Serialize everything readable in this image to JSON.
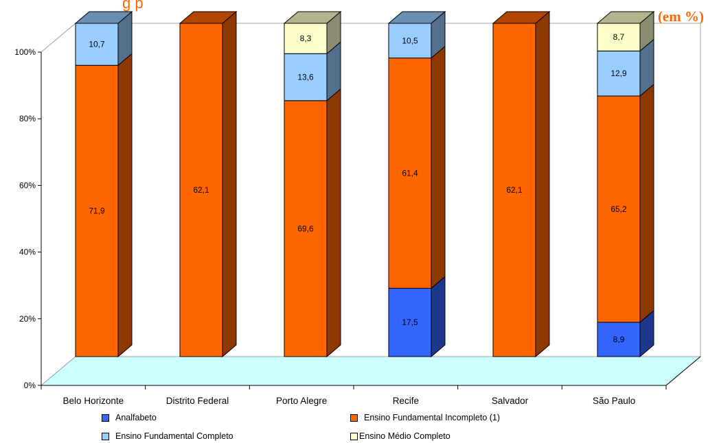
{
  "header": {
    "title_fragment": "g            p",
    "unit": "(em %)"
  },
  "colors": {
    "Analfabeto": "#3366ff",
    "Ensino Fundamental Incompleto (1)": "#ff6600",
    "Ensino Fundamental Completo": "#99ccff",
    "Ensino Médio Completo": "#ffffcc",
    "floor": "#ccffff"
  },
  "chart_data": {
    "type": "bar",
    "stacked": true,
    "three_d": true,
    "categories": [
      "Belo Horizonte",
      "Distrito Federal",
      "Porto Alegre",
      "Recife",
      "Salvador",
      "São Paulo"
    ],
    "series": [
      {
        "name": "Analfabeto",
        "values": [
          null,
          null,
          null,
          17.5,
          null,
          8.9
        ],
        "extent": [
          0,
          0,
          0,
          20.5,
          0,
          10.3
        ]
      },
      {
        "name": "Ensino Fundamental Incompleto (1)",
        "values": [
          71.9,
          62.1,
          69.6,
          61.4,
          62.1,
          65.2
        ],
        "extent": [
          87.4,
          100,
          76.8,
          69.1,
          100,
          67.9
        ]
      },
      {
        "name": "Ensino Fundamental Completo",
        "values": [
          10.7,
          null,
          13.6,
          10.5,
          null,
          12.9
        ],
        "extent": [
          12.6,
          0,
          14.1,
          10.4,
          0,
          13.5
        ]
      },
      {
        "name": "Ensino Médio Completo",
        "values": [
          null,
          null,
          8.3,
          null,
          null,
          8.7
        ],
        "extent": [
          0,
          0,
          9.1,
          0,
          0,
          8.3
        ]
      }
    ],
    "y_ticks": [
      "0%",
      "20%",
      "40%",
      "60%",
      "80%",
      "100%"
    ],
    "ylim": [
      0,
      100
    ],
    "grid": false,
    "legend": {
      "placement": "bottom",
      "items": [
        "Analfabeto",
        "Ensino Fundamental Incompleto (1)",
        "Ensino Fundamental Completo",
        "Ensino Médio Completo"
      ]
    }
  }
}
